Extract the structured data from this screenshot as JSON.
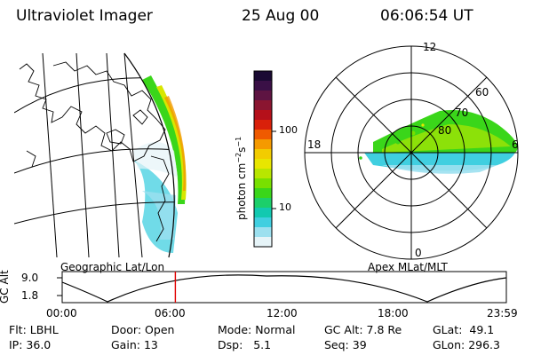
{
  "header": {
    "title": "Ultraviolet Imager",
    "date": "25 Aug 00",
    "time": "06:06:54 UT"
  },
  "left_panel": {
    "label": "Geographic Lat/Lon"
  },
  "right_panel": {
    "label": "Apex MLat/MLT",
    "mlt_labels": {
      "top": "12",
      "left": "18",
      "right": "6",
      "bottom": "0"
    },
    "lat_labels": [
      "60",
      "70",
      "80"
    ]
  },
  "colorbar": {
    "unit": "photon cm",
    "unit_exp1": "−2",
    "unit_mid": "s",
    "unit_exp2": "−1",
    "ticks": [
      "100",
      "10"
    ],
    "colors": [
      "#1a0a33",
      "#3a1046",
      "#5e1442",
      "#8a1530",
      "#b5101a",
      "#d9200a",
      "#ef5a00",
      "#f59a00",
      "#f2cc00",
      "#e8e600",
      "#b8e600",
      "#78e000",
      "#3ad61a",
      "#1ccf6a",
      "#12c9b0",
      "#40cfe0",
      "#9ce0ef",
      "#e6f4f8"
    ]
  },
  "altitude": {
    "axis_title": "GC Alt",
    "yticks": [
      "9.0",
      "1.8"
    ],
    "xticks": [
      "00:00",
      "06:00",
      "12:00",
      "18:00",
      "23:59"
    ],
    "current_time_hours": 6.115
  },
  "footer": {
    "flt_label": "Flt:",
    "flt_value": "LBHL",
    "ip_label": "IP:",
    "ip_value": "36.0",
    "door_label": "Door:",
    "door_value": "Open",
    "gain_label": "Gain:",
    "gain_value": "13",
    "mode_label": "Mode:",
    "mode_value": "Normal",
    "dsp_label": "Dsp:",
    "dsp_value": "5.1",
    "gcalt_label": "GC Alt:",
    "gcalt_value": "7.8 Re",
    "seq_label": "Seq:",
    "seq_value": "39",
    "glat_label": "GLat:",
    "glat_value": "49.1",
    "glon_label": "GLon:",
    "glon_value": "296.3"
  }
}
